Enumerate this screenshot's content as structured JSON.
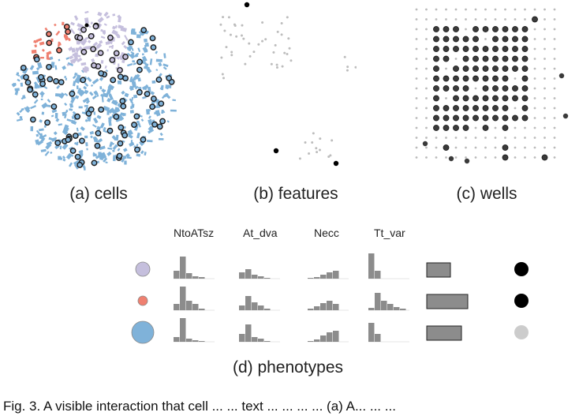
{
  "panels": {
    "cells": {
      "caption": "(a) cells"
    },
    "features": {
      "caption": "(b) features"
    },
    "wells": {
      "caption": "(c) wells"
    },
    "phenotypes": {
      "caption": "(d) phenotypes",
      "feature_labels": [
        "NtoATsz",
        "At_dva",
        "Necc",
        "Tt_var"
      ],
      "rows": [
        {
          "color": "#c5bfdd",
          "size_rank": 2,
          "well_marker": "#000000"
        },
        {
          "color": "#ef8070",
          "size_rank": 1,
          "well_marker": "#000000"
        },
        {
          "color": "#7fb2d9",
          "size_rank": 3,
          "well_marker": "#cccccc"
        }
      ]
    }
  },
  "colors": {
    "cluster_blue": "#7fb2d9",
    "cluster_red": "#ef8070",
    "cluster_purple": "#c5bfdd",
    "histogram_fill": "#8c8c8c",
    "bar_fill": "#8c8c8c",
    "highlight_ring": "#1a1a1a",
    "feature_dot": "#bdbdbd"
  },
  "footer_text": "Fig. 3. A visible interaction that cell ... ... text ... ... ... ... (a) A... ... ..."
}
